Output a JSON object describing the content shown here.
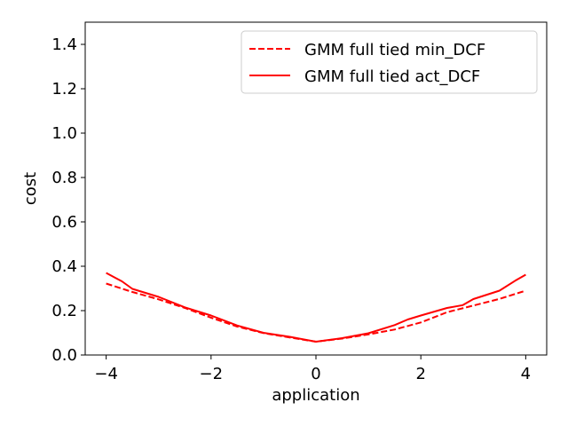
{
  "chart_data": {
    "type": "line",
    "title": "",
    "xlabel": "application",
    "ylabel": "cost",
    "xlim": [
      -4.4,
      4.4
    ],
    "ylim": [
      0.0,
      1.5
    ],
    "grid": false,
    "legend_position": "top-right",
    "xticks": [
      -4,
      -2,
      0,
      2,
      4
    ],
    "xtick_labels": [
      "−4",
      "−2",
      "0",
      "2",
      "4"
    ],
    "yticks": [
      0.0,
      0.2,
      0.4,
      0.6,
      0.8,
      1.0,
      1.2,
      1.4
    ],
    "ytick_labels": [
      "0.0",
      "0.2",
      "0.4",
      "0.6",
      "0.8",
      "1.0",
      "1.2",
      "1.4"
    ],
    "series": [
      {
        "name": "GMM full tied min_DCF",
        "color": "#ff0000",
        "style": "dashed",
        "x": [
          -4.0,
          -3.5,
          -3.0,
          -2.5,
          -2.0,
          -1.5,
          -1.0,
          -0.5,
          0.0,
          0.5,
          1.0,
          1.5,
          2.0,
          2.5,
          3.0,
          3.5,
          4.0
        ],
        "y": [
          0.322,
          0.284,
          0.251,
          0.212,
          0.168,
          0.128,
          0.099,
          0.079,
          0.06,
          0.074,
          0.093,
          0.115,
          0.147,
          0.193,
          0.223,
          0.253,
          0.29
        ]
      },
      {
        "name": "GMM full tied act_DCF",
        "color": "#ff0000",
        "style": "solid",
        "x": [
          -4.0,
          -3.7,
          -3.5,
          -3.0,
          -2.5,
          -2.0,
          -1.5,
          -1.0,
          -0.5,
          0.0,
          0.5,
          1.0,
          1.5,
          1.75,
          2.0,
          2.5,
          2.8,
          3.0,
          3.5,
          3.8,
          4.0
        ],
        "y": [
          0.37,
          0.332,
          0.298,
          0.262,
          0.215,
          0.178,
          0.133,
          0.1,
          0.082,
          0.06,
          0.076,
          0.098,
          0.135,
          0.16,
          0.178,
          0.212,
          0.225,
          0.252,
          0.29,
          0.335,
          0.362
        ]
      }
    ]
  }
}
